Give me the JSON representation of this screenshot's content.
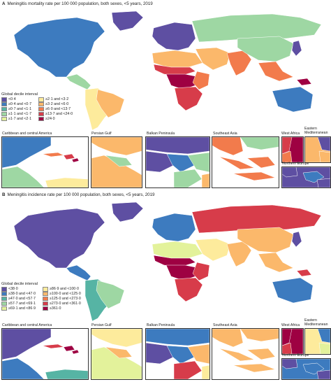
{
  "panels": [
    {
      "letter": "A",
      "title": "Meningitis mortality rate per 100 000 population, both sexes, <5 years, 2019",
      "legend_title": "Global decile interval",
      "legend_left": [
        {
          "label": "<0·4",
          "color": "#5e4fa2"
        },
        {
          "label": "≥0·4 and <0·7",
          "color": "#3d7bbf"
        },
        {
          "label": "≥0·7 and <1·1",
          "color": "#56b4a4"
        },
        {
          "label": "≥1·1 and <1·7",
          "color": "#9ed7a3"
        },
        {
          "label": "≥1·7 and <2·1",
          "color": "#e3f29b"
        }
      ],
      "legend_right": [
        {
          "label": "≥2·1 and <3·2",
          "color": "#fdeb9c"
        },
        {
          "label": "≥3·2 and <6·0",
          "color": "#fbb86b"
        },
        {
          "label": "≥6·0 and <13·7",
          "color": "#f27b4c"
        },
        {
          "label": "≥13·7 and <24·0",
          "color": "#d73c4a"
        },
        {
          "label": "≥24·0",
          "color": "#9e0142"
        }
      ],
      "insets": [
        "Caribbean and central America",
        "Persian Gulf",
        "Balkan Peninsula",
        "Southeast Asia",
        "West Africa",
        "Eastern Mediterranean",
        "Northern Europe"
      ]
    },
    {
      "letter": "B",
      "title": "Meningitis incidence rate per 100 000 population, both sexes, <5 years, 2019",
      "legend_title": "Global decile interval",
      "legend_left": [
        {
          "label": "<38·0",
          "color": "#5e4fa2"
        },
        {
          "label": "≥38·0 and <47·0",
          "color": "#3d7bbf"
        },
        {
          "label": "≥47·0 and <57·7",
          "color": "#56b4a4"
        },
        {
          "label": "≥57·7 and <69·1",
          "color": "#9ed7a3"
        },
        {
          "label": "≥69·1 and <86·9",
          "color": "#e3f29b"
        }
      ],
      "legend_right": [
        {
          "label": "≥86·9 and <100·0",
          "color": "#fdeb9c"
        },
        {
          "label": "≥100·0 and <125·0",
          "color": "#fbb86b"
        },
        {
          "label": "≥125·0 and <273·0",
          "color": "#f27b4c"
        },
        {
          "label": "≥273·0 and <361·0",
          "color": "#d73c4a"
        },
        {
          "label": "≥361·0",
          "color": "#9e0142"
        }
      ],
      "insets": [
        "Caribbean and central America",
        "Persian Gulf",
        "Balkan Peninsula",
        "Southeast Asia",
        "West Africa",
        "Eastern Mediterranean",
        "Northern Europe"
      ]
    }
  ],
  "palette": [
    "#5e4fa2",
    "#3d7bbf",
    "#56b4a4",
    "#9ed7a3",
    "#e3f29b",
    "#fdeb9c",
    "#fbb86b",
    "#f27b4c",
    "#d73c4a",
    "#9e0142"
  ],
  "regions_a": {
    "na": "#3d7bbf",
    "greenland": "#5e4fa2",
    "ca": "#9ed7a3",
    "sa": "#fdeb9c",
    "brazil": "#fbb86b",
    "europe": "#5e4fa2",
    "russia": "#9ed7a3",
    "nafrica": "#fbb86b",
    "sahel": "#d73c4a",
    "cafrica": "#9e0142",
    "eafrica": "#f27b4c",
    "safrica": "#d73c4a",
    "mideast": "#fbb86b",
    "india": "#f27b4c",
    "china": "#9ed7a3",
    "seasia": "#f27b4c",
    "australia": "#3d7bbf",
    "japan": "#5e4fa2",
    "png": "#9e0142"
  },
  "regions_b": {
    "na": "#5e4fa2",
    "greenland": "#5e4fa2",
    "ca": "#3d7bbf",
    "sa": "#56b4a4",
    "brazil": "#9ed7a3",
    "europe": "#3d7bbf",
    "russia": "#d73c4a",
    "nafrica": "#e3f29b",
    "sahel": "#9e0142",
    "cafrica": "#9e0142",
    "eafrica": "#d73c4a",
    "safrica": "#d73c4a",
    "mideast": "#fdeb9c",
    "india": "#fbb86b",
    "china": "#fbb86b",
    "seasia": "#fbb86b",
    "australia": "#3d7bbf",
    "japan": "#5e4fa2",
    "png": "#d73c4a"
  }
}
